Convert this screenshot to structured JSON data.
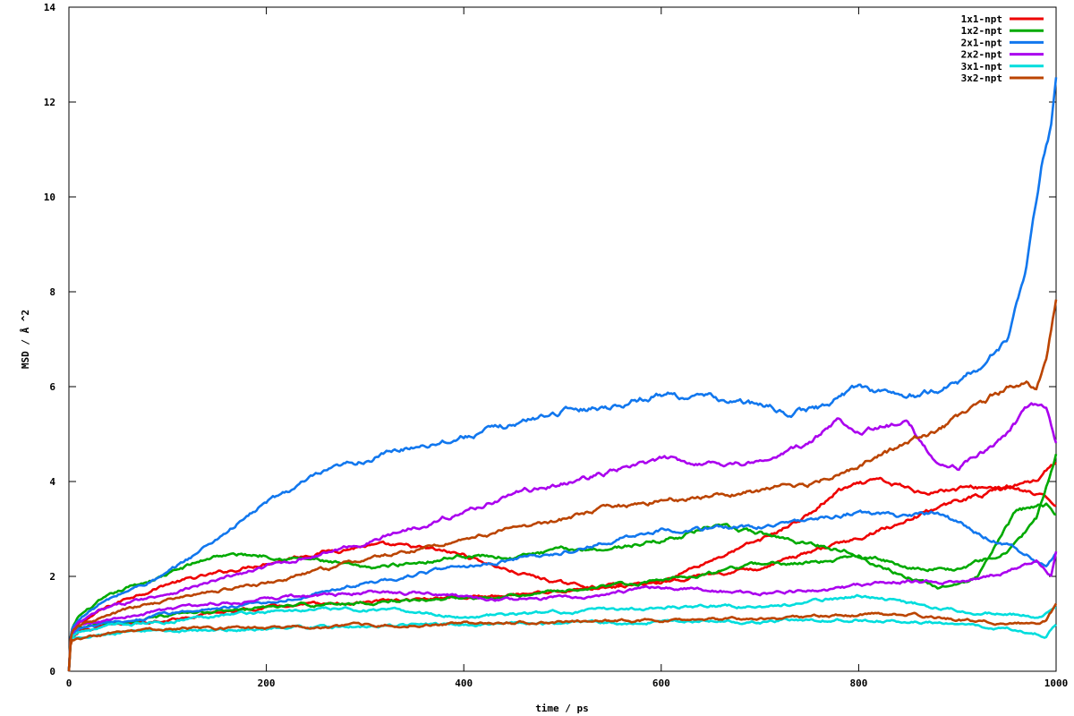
{
  "chart_data": {
    "type": "line",
    "title": "",
    "xlabel": "time / ps",
    "ylabel": "MSD / Å ^2",
    "xlim": [
      0,
      1000
    ],
    "ylim": [
      0,
      14
    ],
    "xticks": [
      "0",
      "200",
      "400",
      "600",
      "800",
      "1000"
    ],
    "yticks": [
      "0",
      "2",
      "4",
      "6",
      "8",
      "10",
      "12",
      "14"
    ],
    "grid": false,
    "legend_position": "top-right",
    "series": [
      {
        "name": "1x1-npt",
        "color": "#ee0000",
        "curves": [
          {
            "x": [
              0,
              2,
              10,
              30,
              60,
              100,
              150,
              200,
              250,
              300,
              350,
              400,
              450,
              500,
              550,
              600,
              650,
              700,
              750,
              780,
              820,
              860,
              900,
              950,
              980,
              1000
            ],
            "y": [
              0,
              0.8,
              1.0,
              1.25,
              1.55,
              1.85,
              2.05,
              2.3,
              2.5,
              2.65,
              2.6,
              2.45,
              2.1,
              1.85,
              1.75,
              1.9,
              2.35,
              2.75,
              3.3,
              3.8,
              4.0,
              3.8,
              3.85,
              3.9,
              3.7,
              3.5
            ]
          },
          {
            "x": [
              0,
              2,
              10,
              40,
              100,
              200,
              300,
              400,
              500,
              600,
              650,
              700,
              750,
              800,
              850,
              900,
              950,
              980,
              1000
            ],
            "y": [
              0,
              0.7,
              0.85,
              0.95,
              1.1,
              1.35,
              1.45,
              1.55,
              1.7,
              1.9,
              2.05,
              2.2,
              2.5,
              2.8,
              3.2,
              3.6,
              3.85,
              4.0,
              4.4
            ]
          }
        ]
      },
      {
        "name": "1x2-npt",
        "color": "#00aa00",
        "curves": [
          {
            "x": [
              0,
              2,
              10,
              30,
              60,
              100,
              150,
              200,
              250,
              300,
              350,
              400,
              450,
              500,
              550,
              600,
              650,
              700,
              750,
              800,
              850,
              900,
              950,
              980,
              1000
            ],
            "y": [
              0,
              0.85,
              1.15,
              1.45,
              1.75,
              2.05,
              2.45,
              2.45,
              2.35,
              2.15,
              2.3,
              2.45,
              2.4,
              2.55,
              2.6,
              2.75,
              3.05,
              2.9,
              2.7,
              2.5,
              2.2,
              2.15,
              2.5,
              3.2,
              4.5
            ]
          },
          {
            "x": [
              0,
              2,
              10,
              40,
              100,
              200,
              300,
              400,
              500,
              600,
              700,
              750,
              800,
              850,
              880,
              920,
              960,
              990,
              1000
            ],
            "y": [
              0,
              0.75,
              0.9,
              1.0,
              1.15,
              1.35,
              1.45,
              1.55,
              1.7,
              1.9,
              2.25,
              2.3,
              2.4,
              2.0,
              1.75,
              2.0,
              3.4,
              3.5,
              3.3
            ]
          }
        ]
      },
      {
        "name": "2x1-npt",
        "color": "#1177ee",
        "curves": [
          {
            "x": [
              0,
              2,
              10,
              30,
              60,
              100,
              150,
              200,
              250,
              300,
              350,
              400,
              450,
              500,
              550,
              600,
              650,
              700,
              730,
              760,
              800,
              850,
              880,
              900,
              930,
              950,
              970,
              985,
              995,
              1000
            ],
            "y": [
              0,
              0.85,
              1.1,
              1.4,
              1.7,
              2.05,
              2.8,
              3.55,
              4.1,
              4.45,
              4.75,
              4.95,
              5.2,
              5.5,
              5.6,
              5.85,
              5.75,
              5.6,
              5.45,
              5.55,
              6.0,
              5.8,
              5.9,
              6.1,
              6.5,
              7.0,
              8.5,
              10.5,
              11.5,
              12.5
            ]
          },
          {
            "x": [
              0,
              2,
              10,
              40,
              100,
              200,
              300,
              400,
              500,
              550,
              600,
              650,
              700,
              750,
              800,
              850,
              880,
              920,
              960,
              990,
              1000
            ],
            "y": [
              0,
              0.75,
              0.9,
              1.0,
              1.2,
              1.45,
              1.85,
              2.2,
              2.5,
              2.75,
              3.0,
              3.0,
              3.05,
              3.25,
              3.35,
              3.25,
              3.35,
              2.9,
              2.6,
              2.2,
              2.5
            ]
          }
        ]
      },
      {
        "name": "2x2-npt",
        "color": "#aa00ee",
        "curves": [
          {
            "x": [
              0,
              2,
              10,
              30,
              60,
              100,
              150,
              200,
              250,
              300,
              350,
              400,
              450,
              500,
              550,
              600,
              650,
              700,
              750,
              780,
              800,
              850,
              880,
              900,
              940,
              970,
              990,
              1000
            ],
            "y": [
              0,
              0.8,
              1.0,
              1.25,
              1.45,
              1.65,
              1.9,
              2.2,
              2.45,
              2.7,
              3.05,
              3.35,
              3.75,
              3.95,
              4.2,
              4.45,
              4.4,
              4.4,
              4.8,
              5.3,
              5.1,
              5.2,
              4.4,
              4.3,
              4.8,
              5.5,
              5.6,
              4.8
            ]
          },
          {
            "x": [
              0,
              2,
              10,
              40,
              100,
              200,
              300,
              350,
              400,
              450,
              500,
              550,
              600,
              650,
              700,
              750,
              800,
              850,
              900,
              950,
              980,
              995,
              1000
            ],
            "y": [
              0,
              0.75,
              0.95,
              1.1,
              1.3,
              1.55,
              1.65,
              1.65,
              1.55,
              1.5,
              1.55,
              1.65,
              1.75,
              1.7,
              1.65,
              1.7,
              1.8,
              1.9,
              1.9,
              2.1,
              2.3,
              2.0,
              2.5
            ]
          }
        ]
      },
      {
        "name": "3x1-npt",
        "color": "#00dddd",
        "curves": [
          {
            "x": [
              0,
              2,
              10,
              40,
              100,
              150,
              200,
              250,
              300,
              350,
              400,
              450,
              500,
              550,
              600,
              650,
              700,
              750,
              800,
              850,
              900,
              950,
              980,
              1000
            ],
            "y": [
              0,
              0.75,
              0.85,
              0.95,
              1.05,
              1.2,
              1.25,
              1.3,
              1.3,
              1.25,
              1.15,
              1.2,
              1.25,
              1.3,
              1.35,
              1.4,
              1.35,
              1.45,
              1.6,
              1.45,
              1.3,
              1.2,
              1.15,
              1.3
            ]
          },
          {
            "x": [
              0,
              2,
              10,
              40,
              100,
              200,
              300,
              400,
              500,
              600,
              700,
              800,
              850,
              900,
              950,
              980,
              990,
              1000
            ],
            "y": [
              0,
              0.7,
              0.75,
              0.8,
              0.85,
              0.9,
              0.95,
              0.98,
              1.0,
              1.05,
              1.05,
              1.1,
              1.05,
              1.0,
              0.9,
              0.8,
              0.75,
              1.0
            ]
          }
        ]
      },
      {
        "name": "3x2-npt",
        "color": "#bb4400",
        "curves": [
          {
            "x": [
              0,
              2,
              10,
              30,
              60,
              100,
              150,
              200,
              250,
              300,
              350,
              400,
              450,
              500,
              550,
              600,
              650,
              700,
              750,
              800,
              850,
              900,
              930,
              950,
              970,
              980,
              990,
              1000
            ],
            "y": [
              0,
              0.8,
              0.95,
              1.1,
              1.3,
              1.5,
              1.7,
              1.85,
              2.1,
              2.35,
              2.55,
              2.8,
              3.0,
              3.2,
              3.45,
              3.6,
              3.7,
              3.8,
              3.95,
              4.35,
              4.8,
              5.3,
              5.7,
              6.0,
              6.1,
              5.9,
              6.5,
              7.7
            ]
          },
          {
            "x": [
              0,
              2,
              10,
              40,
              100,
              200,
              300,
              400,
              500,
              600,
              700,
              800,
              850,
              900,
              950,
              980,
              990,
              1000
            ],
            "y": [
              0,
              0.65,
              0.7,
              0.8,
              0.88,
              0.92,
              0.97,
              1.0,
              1.05,
              1.08,
              1.1,
              1.2,
              1.2,
              1.1,
              1.0,
              1.0,
              1.1,
              1.4
            ]
          }
        ]
      }
    ]
  }
}
